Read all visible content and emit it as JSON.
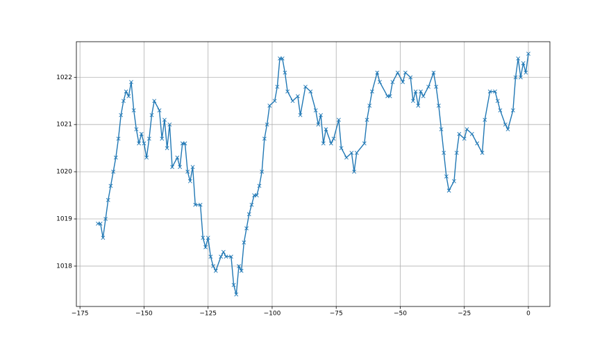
{
  "chart_data": {
    "type": "line",
    "color": "#1f77b4",
    "marker": "x",
    "grid": true,
    "x": [
      -168,
      -167,
      -166,
      -165,
      -164,
      -163,
      -162,
      -161,
      -160,
      -159,
      -158,
      -157,
      -156,
      -155,
      -154,
      -153,
      -152,
      -151,
      -150,
      -149,
      -148,
      -147,
      -146,
      -144,
      -143,
      -142,
      -141,
      -140,
      -139,
      -137,
      -136,
      -135,
      -134,
      -133,
      -132,
      -131,
      -130,
      -128,
      -127,
      -126,
      -125,
      -124,
      -123,
      -122,
      -120,
      -119,
      -118,
      -116,
      -115,
      -114,
      -113,
      -112,
      -111,
      -110,
      -109,
      -108,
      -107,
      -106,
      -105,
      -104,
      -103,
      -102,
      -101,
      -99,
      -98,
      -97,
      -96,
      -95,
      -94,
      -92,
      -90,
      -89,
      -87,
      -85,
      -83,
      -82,
      -81,
      -80,
      -79,
      -77,
      -76,
      -74,
      -73,
      -71,
      -69,
      -68,
      -67,
      -64,
      -63,
      -62,
      -61,
      -59,
      -58,
      -55,
      -54,
      -53,
      -51,
      -49,
      -48,
      -46,
      -45,
      -44,
      -43,
      -42,
      -41,
      -39,
      -37,
      -36,
      -35,
      -34,
      -33,
      -32,
      -31,
      -29,
      -28,
      -27,
      -25,
      -24,
      -22,
      -20,
      -18,
      -17,
      -15,
      -13,
      -12,
      -11,
      -9,
      -8,
      -6,
      -5,
      -4,
      -3,
      -2,
      -1,
      0
    ],
    "values": [
      1018.9,
      1018.9,
      1018.6,
      1019.0,
      1019.4,
      1019.7,
      1020.0,
      1020.3,
      1020.7,
      1021.2,
      1021.5,
      1021.7,
      1021.6,
      1021.9,
      1021.3,
      1020.9,
      1020.6,
      1020.8,
      1020.6,
      1020.3,
      1020.7,
      1021.2,
      1021.5,
      1021.3,
      1020.7,
      1021.1,
      1020.5,
      1021.0,
      1020.1,
      1020.3,
      1020.1,
      1020.6,
      1020.6,
      1020.0,
      1019.8,
      1020.1,
      1019.3,
      1019.3,
      1018.6,
      1018.4,
      1018.6,
      1018.2,
      1018.0,
      1017.9,
      1018.2,
      1018.3,
      1018.2,
      1018.2,
      1017.6,
      1017.4,
      1018.0,
      1017.9,
      1018.5,
      1018.8,
      1019.1,
      1019.3,
      1019.5,
      1019.5,
      1019.7,
      1020.0,
      1020.7,
      1021.0,
      1021.4,
      1021.5,
      1021.8,
      1022.4,
      1022.4,
      1022.1,
      1021.7,
      1021.5,
      1021.6,
      1021.2,
      1021.8,
      1021.7,
      1021.3,
      1021.0,
      1021.2,
      1020.6,
      1020.9,
      1020.6,
      1020.7,
      1021.1,
      1020.5,
      1020.3,
      1020.4,
      1020.0,
      1020.4,
      1020.6,
      1021.1,
      1021.4,
      1021.7,
      1022.1,
      1021.9,
      1021.6,
      1021.6,
      1021.9,
      1022.1,
      1021.9,
      1022.1,
      1022.0,
      1021.5,
      1021.7,
      1021.4,
      1021.7,
      1021.6,
      1021.8,
      1022.1,
      1021.8,
      1021.4,
      1020.9,
      1020.4,
      1019.9,
      1019.6,
      1019.8,
      1020.4,
      1020.8,
      1020.7,
      1020.9,
      1020.8,
      1020.6,
      1020.4,
      1021.1,
      1021.7,
      1021.7,
      1021.5,
      1021.3,
      1021.0,
      1020.9,
      1021.3,
      1022.0,
      1022.4,
      1022.0,
      1022.3,
      1022.1,
      1022.5
    ],
    "xlim": [
      -176.4,
      8.4
    ],
    "ylim": [
      1017.145,
      1022.755
    ],
    "xticks": [
      {
        "value": -175,
        "label": "−175"
      },
      {
        "value": -150,
        "label": "−150"
      },
      {
        "value": -125,
        "label": "−125"
      },
      {
        "value": -100,
        "label": "−100"
      },
      {
        "value": -75,
        "label": "−75"
      },
      {
        "value": -50,
        "label": "−50"
      },
      {
        "value": -25,
        "label": "−25"
      },
      0
    ],
    "yticks": [
      1018,
      1019,
      1020,
      1021,
      1022
    ]
  }
}
